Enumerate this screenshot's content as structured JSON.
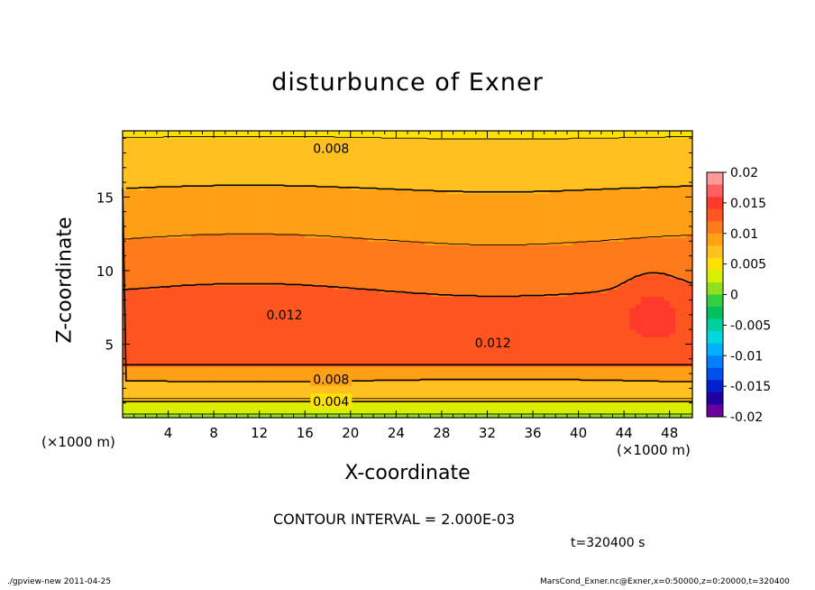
{
  "chart_data": {
    "type": "heatmap",
    "title": "disturbunce of Exner",
    "xlabel": "X-coordinate",
    "ylabel": "Z-coordinate",
    "x_unit_left": "(×1000 m)",
    "x_unit_right": "(×1000 m)",
    "xlim": [
      0,
      50
    ],
    "ylim": [
      0,
      19.5
    ],
    "x_ticks": [
      4,
      8,
      12,
      16,
      20,
      24,
      28,
      32,
      36,
      40,
      44,
      48
    ],
    "y_ticks": [
      5,
      10,
      15
    ],
    "colorbar": {
      "ticks": [
        "0.02",
        "0.015",
        "0.01",
        "0.005",
        "0",
        "-0.005",
        "-0.01",
        "-0.015",
        "-0.02"
      ],
      "range": [
        -0.02,
        0.02
      ],
      "bands": [
        {
          "min": 0.018,
          "color": "#ff9999"
        },
        {
          "min": 0.016,
          "color": "#ff6060"
        },
        {
          "min": 0.014,
          "color": "#ff3a2a"
        },
        {
          "min": 0.012,
          "color": "#ff5520"
        },
        {
          "min": 0.01,
          "color": "#ff7a1a"
        },
        {
          "min": 0.008,
          "color": "#ffa015"
        },
        {
          "min": 0.006,
          "color": "#ffc020"
        },
        {
          "min": 0.004,
          "color": "#ffe000"
        },
        {
          "min": 0.002,
          "color": "#d8f000"
        },
        {
          "min": 0.0,
          "color": "#90e020"
        },
        {
          "min": -0.002,
          "color": "#30d040"
        },
        {
          "min": -0.004,
          "color": "#00c060"
        },
        {
          "min": -0.006,
          "color": "#00d0a0"
        },
        {
          "min": -0.008,
          "color": "#00d8e0"
        },
        {
          "min": -0.01,
          "color": "#00b0ff"
        },
        {
          "min": -0.012,
          "color": "#0080ff"
        },
        {
          "min": -0.014,
          "color": "#0050f0"
        },
        {
          "min": -0.016,
          "color": "#0020d0"
        },
        {
          "min": -0.018,
          "color": "#2000a0"
        },
        {
          "min": -0.02,
          "color": "#6a00a0"
        }
      ]
    },
    "contour_labels": [
      {
        "text": "0.008",
        "x": 18.3,
        "z": 18.3
      },
      {
        "text": "0.012",
        "x": 14.2,
        "z": 7.0
      },
      {
        "text": "0.012",
        "x": 32.5,
        "z": 5.1
      },
      {
        "text": "0.008",
        "x": 18.3,
        "z": 2.6
      },
      {
        "text": "0.004",
        "x": 18.3,
        "z": 1.1
      }
    ],
    "contour_interval": "CONTOUR INTERVAL = 2.000E-03",
    "time_label": "t=320400 s"
  },
  "footer": {
    "left": "./gpview-new  2011-04-25",
    "right": "MarsCond_Exner.nc@Exner,x=0:50000,z=0:20000,t=320400"
  }
}
